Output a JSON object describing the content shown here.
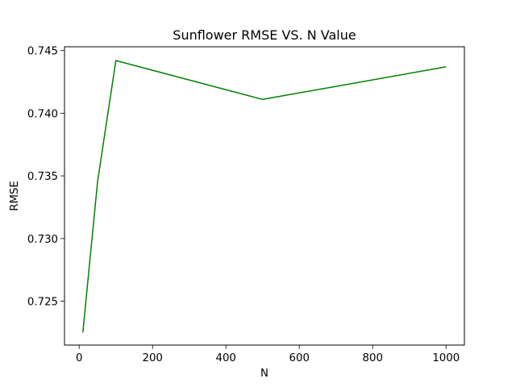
{
  "chart_data": {
    "type": "line",
    "title": "Sunflower RMSE VS. N Value",
    "xlabel": "N",
    "ylabel": "RMSE",
    "xlim": [
      -40,
      1050
    ],
    "ylim": [
      0.7215,
      0.7453
    ],
    "xticks": [
      0,
      200,
      400,
      600,
      800,
      1000
    ],
    "yticks": [
      0.725,
      0.73,
      0.735,
      0.74,
      0.745
    ],
    "ytick_labels": [
      "0.725",
      "0.730",
      "0.735",
      "0.740",
      "0.745"
    ],
    "grid": false,
    "series": [
      {
        "color": "#008000",
        "x": [
          10,
          50,
          100,
          500,
          1000
        ],
        "y": [
          0.7225,
          0.7345,
          0.7442,
          0.7411,
          0.7437
        ]
      }
    ]
  }
}
